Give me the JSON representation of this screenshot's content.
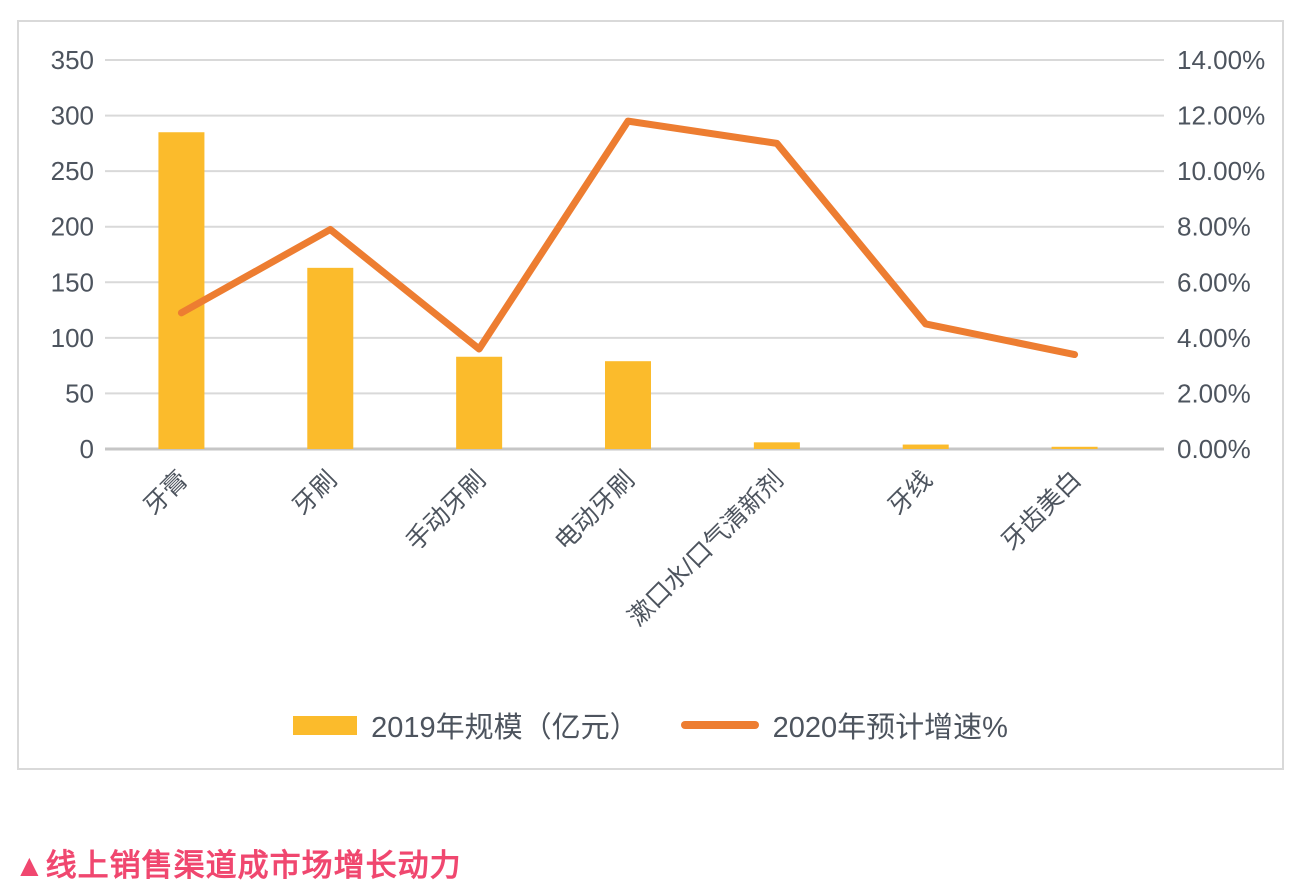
{
  "chart_data": {
    "type": "combo",
    "categories": [
      "牙膏",
      "牙刷",
      "手动牙刷",
      "电动牙刷",
      "漱口水/口气清新剂",
      "牙线",
      "牙齿美白"
    ],
    "series": [
      {
        "name": "2019年规模（亿元）",
        "type": "bar",
        "axis": "left",
        "values": [
          285,
          163,
          83,
          79,
          6,
          4,
          2
        ],
        "color": "#FBBB2C"
      },
      {
        "name": "2020年预计增速%",
        "type": "line",
        "axis": "right",
        "values": [
          4.9,
          7.9,
          3.6,
          11.8,
          11.0,
          4.5,
          3.4
        ],
        "color": "#ED7D31"
      }
    ],
    "left_axis": {
      "min": 0,
      "max": 350,
      "step": 50,
      "tick_labels": [
        "0",
        "50",
        "100",
        "150",
        "200",
        "250",
        "300",
        "350"
      ]
    },
    "right_axis": {
      "min": 0,
      "max": 14,
      "step": 2,
      "tick_labels": [
        "0.00%",
        "2.00%",
        "4.00%",
        "6.00%",
        "8.00%",
        "10.00%",
        "12.00%",
        "14.00%"
      ]
    },
    "grid": true,
    "legend_position": "bottom",
    "title": "",
    "xlabel": "",
    "ylabel": ""
  },
  "legend": {
    "bar_label": "2019年规模（亿元）",
    "line_label": "2020年预计增速%"
  },
  "caption": {
    "text": "▲线上销售渠道成市场增长动力"
  },
  "colors": {
    "bar": "#FBBB2C",
    "line": "#ED7D31",
    "gridline": "#D9D9D9",
    "baseline": "#C6C6C6",
    "axis_text": "#4d545e",
    "caption": "#F0476F",
    "panel_border": "#D9D9D9"
  }
}
